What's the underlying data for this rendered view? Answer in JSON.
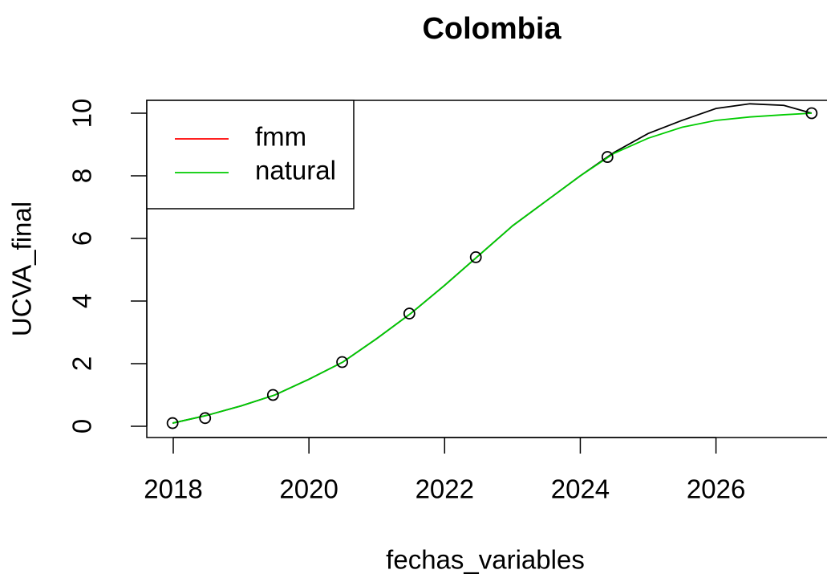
{
  "chart_data": {
    "type": "line",
    "title": "Colombia",
    "x_label": "fechas_variables",
    "y_label": "UCVA_final",
    "xlim": [
      2017.61,
      2027.79
    ],
    "ylim": [
      -0.36,
      10.41
    ],
    "xticks": [
      2018,
      2020,
      2022,
      2024,
      2026
    ],
    "yticks": [
      0,
      2,
      4,
      6,
      8,
      10
    ],
    "legend": "top-left",
    "points": {
      "color": "#000000",
      "x": [
        2017.99,
        2018.47,
        2019.47,
        2020.49,
        2021.48,
        2022.46,
        2024.4,
        2027.41
      ],
      "y": [
        0.1,
        0.26,
        1.0,
        2.05,
        3.6,
        5.4,
        8.6,
        10.0
      ]
    },
    "x": [
      2017.99,
      2018.5,
      2019,
      2019.5,
      2020,
      2020.5,
      2021,
      2021.5,
      2022,
      2022.5,
      2023,
      2023.5,
      2024,
      2024.5,
      2025,
      2025.5,
      2026,
      2026.5,
      2027,
      2027.41
    ],
    "series": [
      {
        "name": "fmm",
        "color": "#ff0000",
        "line_color": "#000000",
        "values": [
          0.1,
          0.35,
          0.65,
          1.0,
          1.5,
          2.05,
          2.8,
          3.6,
          4.5,
          5.45,
          6.4,
          7.2,
          8.0,
          8.75,
          9.35,
          9.77,
          10.15,
          10.3,
          10.25,
          10.0
        ]
      },
      {
        "name": "natural",
        "color": "#00cc00",
        "line_color": "#00cc00",
        "values": [
          0.1,
          0.35,
          0.65,
          1.0,
          1.5,
          2.05,
          2.8,
          3.6,
          4.5,
          5.45,
          6.4,
          7.2,
          8.0,
          8.72,
          9.2,
          9.55,
          9.77,
          9.88,
          9.95,
          10.0
        ]
      }
    ]
  }
}
